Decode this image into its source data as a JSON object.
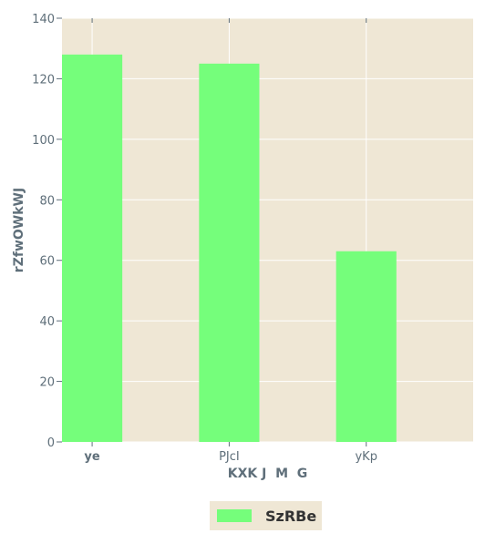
{
  "chart_data": {
    "type": "bar",
    "categories": [
      "ye",
      "PJcI",
      "yKp"
    ],
    "series": [
      {
        "name": "SzRBe",
        "values": [
          128,
          125,
          63
        ]
      }
    ],
    "xlabel": "KXK J  M  G",
    "ylabel": "rZfwOWkWJ",
    "ylim": [
      0,
      140
    ],
    "yticks": [
      0,
      20,
      40,
      60,
      80,
      100,
      120,
      140
    ],
    "grid": true,
    "legend": "bottom-center",
    "colors": {
      "bar": "#75fe7b",
      "plot_background": "#efe7d5",
      "grid": "#ffffff",
      "text": "#5f6f7a"
    }
  }
}
